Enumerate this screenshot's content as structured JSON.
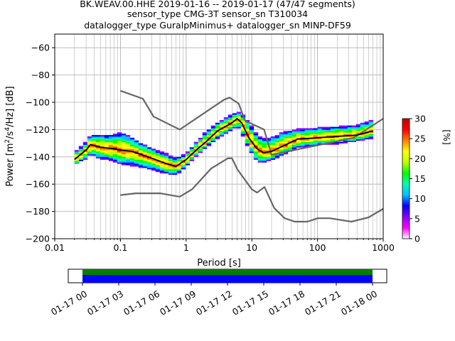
{
  "title_lines": [
    "BK.WEAV.00.HHE   2019-01-16 -- 2019-01-17  (47/47 segments)",
    "sensor_type CMG-3T sensor_sn T310034",
    "datalogger_type GuralpMinimus+ datalogger_sn MINP-DF59"
  ],
  "chart_data": {
    "type": "heatmap",
    "xlabel": "Period [s]",
    "ylabel_parts": {
      "pre": "Power [m",
      "sup1": "2",
      "mid": "/s",
      "sup2": "4",
      "post": "/Hz] [dB]"
    },
    "x_scale": "log",
    "xlim": [
      0.01,
      1000
    ],
    "ylim": [
      -200,
      -50
    ],
    "x_ticks": [
      0.01,
      0.1,
      1,
      10,
      100,
      1000
    ],
    "x_tick_labels": [
      "0.01",
      "0.1",
      "1",
      "10",
      "100",
      "1000"
    ],
    "y_ticks": [
      -200,
      -180,
      -160,
      -140,
      -120,
      -100,
      -80,
      -60
    ],
    "y_tick_labels": [
      "−200",
      "−180",
      "−160",
      "−140",
      "−120",
      "−100",
      "−80",
      "−60"
    ],
    "grid": true,
    "colorbar": {
      "label": "[%]",
      "range": [
        0,
        30
      ],
      "ticks": [
        0,
        5,
        10,
        15,
        20,
        25,
        30
      ],
      "tick_labels": [
        "0",
        "5",
        "10",
        "15",
        "20",
        "25",
        "30"
      ],
      "colors": [
        "#ffffff",
        "#ff00ff",
        "#8800ff",
        "#0000ff",
        "#00c0ff",
        "#00ffb0",
        "#00ff00",
        "#c0ff00",
        "#ffff00",
        "#ff8000",
        "#ff0000",
        "#c00000"
      ]
    },
    "median_curve": {
      "period": [
        0.02,
        0.025,
        0.03,
        0.035,
        0.05,
        0.08,
        0.1,
        0.15,
        0.2,
        0.3,
        0.5,
        0.7,
        1,
        1.5,
        2,
        3,
        5,
        6,
        7,
        9,
        12,
        15,
        20,
        30,
        50,
        100,
        200,
        400,
        700
      ],
      "power": [
        -142,
        -138,
        -135,
        -131,
        -133,
        -134,
        -135,
        -136,
        -138,
        -141,
        -145,
        -147,
        -142,
        -134,
        -129,
        -121,
        -115,
        -112,
        -115,
        -126,
        -134,
        -137,
        -136,
        -132,
        -127,
        -126,
        -125,
        -124,
        -121
      ]
    },
    "noise_model_high": {
      "period": [
        0.1,
        0.22,
        0.32,
        0.8,
        3.8,
        4.6,
        6.3,
        7.9,
        15.4,
        20,
        354.8,
        1000
      ],
      "power": [
        -91.5,
        -97.4,
        -110.5,
        -120,
        -98,
        -96.5,
        -101,
        -113.5,
        -120,
        -138.5,
        -126,
        -112
      ]
    },
    "noise_model_low": {
      "period": [
        0.1,
        0.17,
        0.4,
        0.8,
        1.24,
        2.4,
        4.3,
        5,
        6,
        10,
        12,
        15.6,
        21.9,
        31.6,
        45,
        70,
        101,
        154,
        328,
        600,
        1000
      ],
      "power": [
        -168,
        -166.7,
        -166.7,
        -169.2,
        -163.7,
        -148.6,
        -141.1,
        -141.1,
        -149,
        -163.8,
        -166.2,
        -162.1,
        -177.5,
        -185,
        -187.5,
        -187.5,
        -185,
        -185,
        -187.5,
        -184.4,
        -178
      ]
    },
    "psd_spread": {
      "period": [
        0.02,
        0.025,
        0.03,
        0.035,
        0.05,
        0.08,
        0.1,
        0.15,
        0.2,
        0.3,
        0.5,
        0.7,
        1,
        1.5,
        2,
        3,
        5,
        6,
        7,
        9,
        12,
        15,
        20,
        30,
        50,
        100,
        200,
        400,
        700
      ],
      "upper": [
        -137,
        -133,
        -129,
        -124,
        -124,
        -124,
        -122,
        -126,
        -130,
        -134,
        -138,
        -141,
        -138,
        -128,
        -122,
        -115,
        -109,
        -107,
        -108,
        -115,
        -124,
        -127,
        -126,
        -122,
        -120,
        -119,
        -118,
        -117,
        -113
      ],
      "lower": [
        -146,
        -143,
        -141,
        -138,
        -141,
        -143,
        -145,
        -146,
        -147,
        -149,
        -152,
        -153,
        -147,
        -138,
        -133,
        -126,
        -120,
        -117,
        -122,
        -134,
        -143,
        -144,
        -142,
        -138,
        -133,
        -131,
        -130,
        -128,
        -126
      ]
    },
    "time_axis": {
      "tick_labels": [
        "01-17 00",
        "01-17 03",
        "01-17 06",
        "01-17 09",
        "01-17 12",
        "01-17 15",
        "01-17 18",
        "01-17 21",
        "01-18 00"
      ],
      "data_start": "01-17 00",
      "data_end": "01-18 00",
      "bar_colors": [
        "#008000",
        "#0000ff"
      ]
    }
  }
}
